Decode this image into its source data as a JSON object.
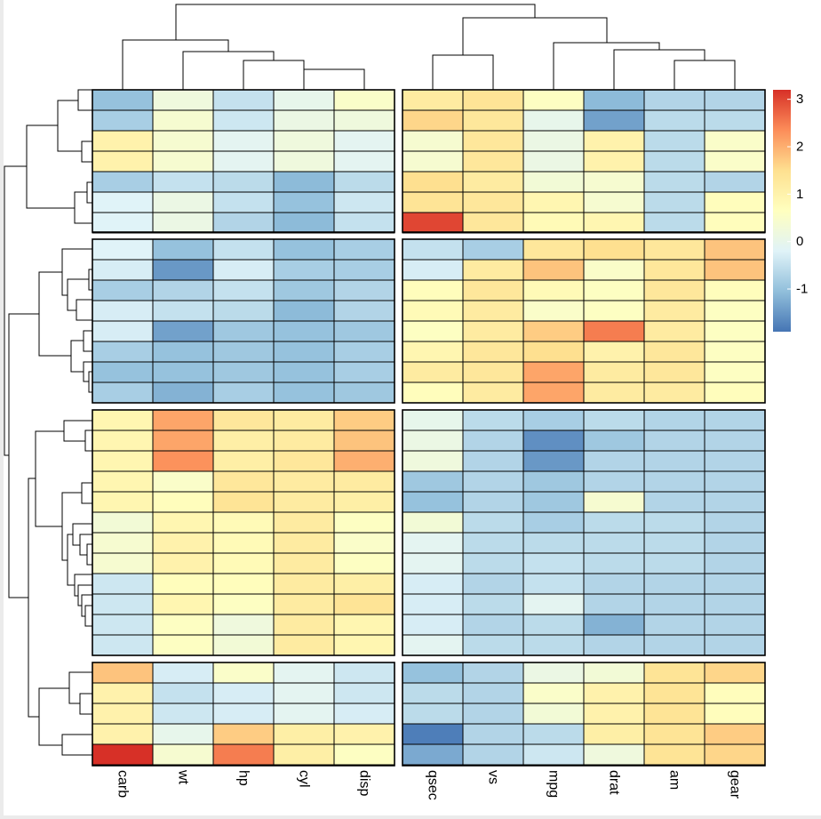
{
  "chart_data": {
    "type": "heatmap",
    "columns": [
      "carb",
      "wt",
      "hp",
      "cyl",
      "disp",
      "qsec",
      "vs",
      "mpg",
      "drat",
      "am",
      "gear"
    ],
    "column_groups": [
      5,
      6
    ],
    "row_groups": [
      7,
      8,
      12,
      5
    ],
    "values": [
      [
        -1.0,
        0.2,
        -0.5,
        0.0,
        0.5,
        1.2,
        1.4,
        0.6,
        -1.1,
        -0.7,
        -0.7
      ],
      [
        -0.8,
        0.4,
        -0.4,
        0.1,
        0.2,
        1.6,
        1.3,
        0.0,
        -1.4,
        -0.6,
        -0.6
      ],
      [
        1.0,
        0.4,
        -0.1,
        0.2,
        -0.1,
        0.4,
        1.3,
        0.1,
        1.0,
        -0.6,
        0.5
      ],
      [
        1.0,
        0.4,
        -0.1,
        0.2,
        -0.1,
        0.4,
        1.3,
        0.1,
        1.0,
        -0.6,
        0.5
      ],
      [
        -0.8,
        -0.5,
        -0.6,
        -1.1,
        -0.6,
        1.5,
        1.2,
        0.3,
        0.4,
        -0.6,
        -0.7
      ],
      [
        -0.2,
        0.1,
        -0.5,
        -1.0,
        -0.4,
        1.4,
        1.3,
        0.9,
        0.4,
        -0.6,
        0.7
      ],
      [
        -0.2,
        0.1,
        -0.7,
        -1.1,
        -0.5,
        3.0,
        1.3,
        0.8,
        0.9,
        -0.6,
        0.7
      ],
      [
        -0.2,
        -1.0,
        -0.5,
        -1.0,
        -0.8,
        -0.5,
        -0.8,
        1.3,
        1.5,
        1.3,
        1.8
      ],
      [
        -0.3,
        -1.5,
        -0.3,
        -0.8,
        -0.8,
        -0.3,
        1.2,
        1.8,
        0.5,
        1.3,
        1.8
      ],
      [
        -0.8,
        -0.7,
        -0.5,
        -0.9,
        -0.7,
        0.7,
        1.3,
        0.8,
        0.6,
        1.3,
        0.7
      ],
      [
        -0.3,
        -0.5,
        -0.6,
        -1.1,
        -0.7,
        0.8,
        1.2,
        0.5,
        0.6,
        1.2,
        0.6
      ],
      [
        -0.3,
        -1.4,
        -0.9,
        -1.0,
        -0.9,
        0.6,
        1.2,
        1.7,
        2.5,
        1.2,
        0.6
      ],
      [
        -0.8,
        -1.0,
        -0.9,
        -1.0,
        -0.8,
        0.9,
        1.3,
        1.5,
        1.0,
        1.3,
        0.6
      ],
      [
        -1.0,
        -1.0,
        -0.9,
        -1.0,
        -0.8,
        1.2,
        1.3,
        2.1,
        1.2,
        1.3,
        0.6
      ],
      [
        -0.8,
        -1.2,
        -0.8,
        -1.0,
        -0.9,
        0.7,
        1.2,
        2.1,
        1.2,
        1.2,
        0.7
      ],
      [
        0.9,
        2.1,
        1.3,
        1.2,
        1.7,
        0.0,
        -0.6,
        -0.8,
        -0.6,
        -0.7,
        -0.7
      ],
      [
        0.9,
        2.1,
        1.1,
        1.2,
        1.8,
        0.1,
        -0.7,
        -1.6,
        -0.9,
        -0.7,
        -0.7
      ],
      [
        0.9,
        2.3,
        1.1,
        1.3,
        2.0,
        0.2,
        -0.7,
        -1.5,
        -0.7,
        -0.7,
        -0.7
      ],
      [
        0.9,
        0.5,
        1.3,
        1.2,
        1.2,
        -0.9,
        -0.7,
        -0.9,
        -0.7,
        -0.7,
        -0.7
      ],
      [
        0.9,
        0.7,
        1.4,
        1.2,
        1.1,
        -1.0,
        -0.7,
        -0.9,
        0.4,
        -0.7,
        -0.7
      ],
      [
        0.3,
        0.9,
        0.8,
        1.2,
        0.6,
        0.3,
        -0.6,
        -0.8,
        -0.6,
        -0.6,
        -0.7
      ],
      [
        0.4,
        1.0,
        0.8,
        1.2,
        0.5,
        -0.1,
        -0.6,
        -0.6,
        -0.6,
        -0.6,
        -0.7
      ],
      [
        0.4,
        1.0,
        0.8,
        1.2,
        0.6,
        -0.1,
        -0.6,
        -0.5,
        -0.6,
        -0.6,
        -0.7
      ],
      [
        -0.4,
        0.7,
        0.7,
        1.2,
        1.1,
        -0.3,
        -0.7,
        -0.5,
        -0.7,
        -0.7,
        -0.7
      ],
      [
        -0.4,
        0.9,
        0.6,
        1.2,
        1.4,
        -0.3,
        -0.6,
        -0.1,
        -0.7,
        -0.7,
        -0.7
      ],
      [
        -0.4,
        0.6,
        0.2,
        1.2,
        0.9,
        -0.3,
        -0.7,
        -0.6,
        -1.2,
        -0.7,
        -0.7
      ],
      [
        -0.4,
        0.6,
        0.3,
        1.2,
        0.9,
        -0.1,
        -0.6,
        -0.6,
        -0.7,
        -0.7,
        -0.7
      ],
      [
        1.8,
        -0.3,
        0.5,
        -0.1,
        -0.4,
        -1.0,
        -0.7,
        0.1,
        0.3,
        1.4,
        1.6
      ],
      [
        1.0,
        -0.5,
        -0.3,
        -0.1,
        -0.4,
        -0.6,
        -0.7,
        0.5,
        1.0,
        1.4,
        0.7
      ],
      [
        1.0,
        -0.4,
        -0.3,
        -0.1,
        -0.3,
        -0.6,
        -0.7,
        0.3,
        1.0,
        1.4,
        0.7
      ],
      [
        1.0,
        0.0,
        1.7,
        1.1,
        1.0,
        -1.8,
        -0.7,
        -0.6,
        1.1,
        1.4,
        1.7
      ],
      [
        3.2,
        0.4,
        2.5,
        1.1,
        0.6,
        -1.3,
        -0.7,
        -0.4,
        0.2,
        1.4,
        1.6
      ]
    ],
    "legend": {
      "placement": "right",
      "ticks": [
        3,
        2,
        1,
        0,
        -1
      ],
      "range": [
        -1.9,
        3.2
      ],
      "colors": [
        "#4575b4",
        "#91bfdb",
        "#e0f3f8",
        "#ffffbf",
        "#fee090",
        "#fc8d59",
        "#d73027"
      ]
    }
  }
}
